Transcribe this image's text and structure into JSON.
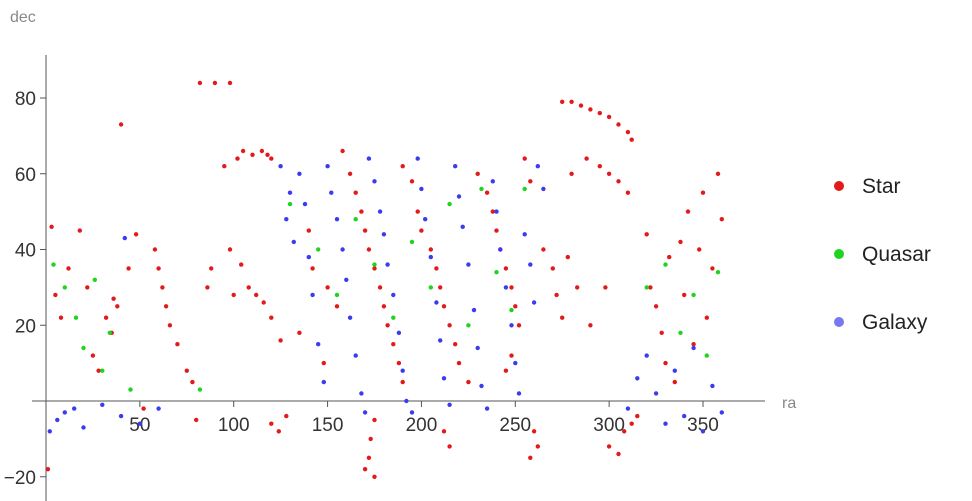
{
  "chart_data": {
    "type": "scatter",
    "xlabel": "ra",
    "ylabel": "dec",
    "xlim": [
      0,
      365
    ],
    "ylim": [
      -23,
      93
    ],
    "x_ticks": [
      50,
      100,
      150,
      200,
      250,
      300,
      350
    ],
    "y_ticks": [
      -20,
      20,
      40,
      60,
      80
    ],
    "y_tick_labels": [
      "−20",
      "20",
      "40",
      "60",
      "80"
    ],
    "series": [
      {
        "name": "Star",
        "color": "#e41a1a",
        "points": [
          [
            1,
            -18
          ],
          [
            3,
            46
          ],
          [
            5,
            28
          ],
          [
            8,
            22
          ],
          [
            12,
            35
          ],
          [
            18,
            45
          ],
          [
            22,
            30
          ],
          [
            25,
            12
          ],
          [
            28,
            8
          ],
          [
            32,
            22
          ],
          [
            35,
            18
          ],
          [
            36,
            27
          ],
          [
            38,
            25
          ],
          [
            40,
            73
          ],
          [
            44,
            35
          ],
          [
            48,
            44
          ],
          [
            52,
            -2
          ],
          [
            58,
            40
          ],
          [
            60,
            35
          ],
          [
            62,
            30
          ],
          [
            64,
            25
          ],
          [
            66,
            20
          ],
          [
            70,
            15
          ],
          [
            75,
            8
          ],
          [
            78,
            5
          ],
          [
            80,
            -5
          ],
          [
            82,
            84
          ],
          [
            86,
            30
          ],
          [
            88,
            35
          ],
          [
            90,
            84
          ],
          [
            95,
            62
          ],
          [
            98,
            84
          ],
          [
            100,
            28
          ],
          [
            102,
            64
          ],
          [
            105,
            66
          ],
          [
            110,
            65
          ],
          [
            115,
            66
          ],
          [
            118,
            65
          ],
          [
            120,
            64
          ],
          [
            98,
            40
          ],
          [
            104,
            36
          ],
          [
            108,
            30
          ],
          [
            112,
            28
          ],
          [
            116,
            26
          ],
          [
            120,
            22
          ],
          [
            125,
            16
          ],
          [
            120,
            -6
          ],
          [
            124,
            -8
          ],
          [
            128,
            -4
          ],
          [
            135,
            18
          ],
          [
            140,
            45
          ],
          [
            142,
            35
          ],
          [
            148,
            10
          ],
          [
            150,
            30
          ],
          [
            155,
            25
          ],
          [
            158,
            66
          ],
          [
            162,
            60
          ],
          [
            165,
            55
          ],
          [
            168,
            50
          ],
          [
            170,
            45
          ],
          [
            172,
            40
          ],
          [
            175,
            35
          ],
          [
            178,
            30
          ],
          [
            180,
            25
          ],
          [
            182,
            20
          ],
          [
            185,
            15
          ],
          [
            188,
            10
          ],
          [
            190,
            5
          ],
          [
            175,
            -5
          ],
          [
            173,
            -10
          ],
          [
            172,
            -15
          ],
          [
            170,
            -18
          ],
          [
            175,
            -20
          ],
          [
            190,
            62
          ],
          [
            195,
            58
          ],
          [
            198,
            50
          ],
          [
            200,
            45
          ],
          [
            205,
            40
          ],
          [
            208,
            35
          ],
          [
            210,
            30
          ],
          [
            212,
            25
          ],
          [
            215,
            20
          ],
          [
            218,
            15
          ],
          [
            220,
            10
          ],
          [
            225,
            5
          ],
          [
            212,
            -8
          ],
          [
            215,
            -12
          ],
          [
            230,
            60
          ],
          [
            235,
            55
          ],
          [
            238,
            50
          ],
          [
            240,
            45
          ],
          [
            242,
            40
          ],
          [
            245,
            35
          ],
          [
            248,
            30
          ],
          [
            250,
            25
          ],
          [
            252,
            20
          ],
          [
            248,
            12
          ],
          [
            245,
            8
          ],
          [
            255,
            64
          ],
          [
            258,
            58
          ],
          [
            260,
            -8
          ],
          [
            262,
            -12
          ],
          [
            258,
            -15
          ],
          [
            265,
            40
          ],
          [
            270,
            35
          ],
          [
            272,
            28
          ],
          [
            275,
            22
          ],
          [
            278,
            38
          ],
          [
            280,
            60
          ],
          [
            283,
            30
          ],
          [
            288,
            64
          ],
          [
            290,
            20
          ],
          [
            295,
            62
          ],
          [
            298,
            30
          ],
          [
            300,
            60
          ],
          [
            305,
            58
          ],
          [
            310,
            55
          ],
          [
            275,
            79
          ],
          [
            280,
            79
          ],
          [
            285,
            78
          ],
          [
            290,
            77
          ],
          [
            295,
            76
          ],
          [
            300,
            75
          ],
          [
            305,
            73
          ],
          [
            310,
            71
          ],
          [
            312,
            69
          ],
          [
            300,
            -12
          ],
          [
            305,
            -14
          ],
          [
            308,
            -8
          ],
          [
            312,
            -6
          ],
          [
            315,
            -4
          ],
          [
            320,
            44
          ],
          [
            322,
            30
          ],
          [
            325,
            25
          ],
          [
            328,
            18
          ],
          [
            330,
            10
          ],
          [
            332,
            38
          ],
          [
            335,
            5
          ],
          [
            338,
            42
          ],
          [
            340,
            28
          ],
          [
            342,
            50
          ],
          [
            345,
            15
          ],
          [
            348,
            40
          ],
          [
            350,
            55
          ],
          [
            352,
            22
          ],
          [
            355,
            35
          ],
          [
            358,
            60
          ],
          [
            360,
            48
          ]
        ]
      },
      {
        "name": "Quasar",
        "color": "#1fd41f",
        "points": [
          [
            4,
            36
          ],
          [
            10,
            30
          ],
          [
            16,
            22
          ],
          [
            20,
            14
          ],
          [
            26,
            32
          ],
          [
            30,
            8
          ],
          [
            34,
            18
          ],
          [
            45,
            3
          ],
          [
            82,
            3
          ],
          [
            130,
            52
          ],
          [
            145,
            40
          ],
          [
            155,
            28
          ],
          [
            165,
            48
          ],
          [
            175,
            36
          ],
          [
            185,
            22
          ],
          [
            195,
            42
          ],
          [
            205,
            30
          ],
          [
            215,
            52
          ],
          [
            225,
            20
          ],
          [
            232,
            56
          ],
          [
            240,
            34
          ],
          [
            248,
            24
          ],
          [
            255,
            56
          ],
          [
            320,
            30
          ],
          [
            330,
            36
          ],
          [
            338,
            18
          ],
          [
            345,
            28
          ],
          [
            352,
            12
          ],
          [
            358,
            34
          ]
        ]
      },
      {
        "name": "Galaxy",
        "color": "#3b3bf0",
        "points": [
          [
            2,
            -8
          ],
          [
            6,
            -5
          ],
          [
            10,
            -3
          ],
          [
            15,
            -2
          ],
          [
            20,
            -7
          ],
          [
            30,
            -1
          ],
          [
            40,
            -4
          ],
          [
            50,
            -6
          ],
          [
            60,
            -2
          ],
          [
            42,
            43
          ],
          [
            125,
            62
          ],
          [
            130,
            55
          ],
          [
            128,
            48
          ],
          [
            132,
            42
          ],
          [
            135,
            60
          ],
          [
            138,
            52
          ],
          [
            140,
            38
          ],
          [
            142,
            28
          ],
          [
            145,
            15
          ],
          [
            148,
            5
          ],
          [
            150,
            62
          ],
          [
            152,
            55
          ],
          [
            155,
            48
          ],
          [
            158,
            40
          ],
          [
            160,
            32
          ],
          [
            162,
            22
          ],
          [
            165,
            12
          ],
          [
            168,
            2
          ],
          [
            170,
            -3
          ],
          [
            172,
            64
          ],
          [
            175,
            58
          ],
          [
            178,
            50
          ],
          [
            180,
            44
          ],
          [
            182,
            36
          ],
          [
            185,
            28
          ],
          [
            188,
            18
          ],
          [
            190,
            8
          ],
          [
            192,
            0
          ],
          [
            195,
            -3
          ],
          [
            198,
            64
          ],
          [
            200,
            56
          ],
          [
            202,
            48
          ],
          [
            205,
            38
          ],
          [
            208,
            26
          ],
          [
            210,
            16
          ],
          [
            212,
            6
          ],
          [
            215,
            -1
          ],
          [
            218,
            62
          ],
          [
            220,
            54
          ],
          [
            222,
            46
          ],
          [
            225,
            36
          ],
          [
            228,
            24
          ],
          [
            230,
            14
          ],
          [
            232,
            4
          ],
          [
            235,
            -2
          ],
          [
            238,
            58
          ],
          [
            240,
            50
          ],
          [
            242,
            40
          ],
          [
            245,
            30
          ],
          [
            248,
            20
          ],
          [
            250,
            10
          ],
          [
            252,
            2
          ],
          [
            255,
            44
          ],
          [
            258,
            36
          ],
          [
            260,
            26
          ],
          [
            262,
            62
          ],
          [
            265,
            56
          ],
          [
            310,
            -2
          ],
          [
            315,
            6
          ],
          [
            320,
            12
          ],
          [
            325,
            2
          ],
          [
            330,
            -6
          ],
          [
            335,
            8
          ],
          [
            340,
            -4
          ],
          [
            345,
            14
          ],
          [
            350,
            -8
          ],
          [
            355,
            4
          ],
          [
            360,
            -3
          ]
        ]
      }
    ],
    "legend": {
      "position": "right",
      "entries": [
        "Star",
        "Quasar",
        "Galaxy"
      ]
    }
  },
  "labels": {
    "ylabel": "dec",
    "xlabel": "ra",
    "legend_star": "Star",
    "legend_quasar": "Quasar",
    "legend_galaxy": "Galaxy"
  }
}
